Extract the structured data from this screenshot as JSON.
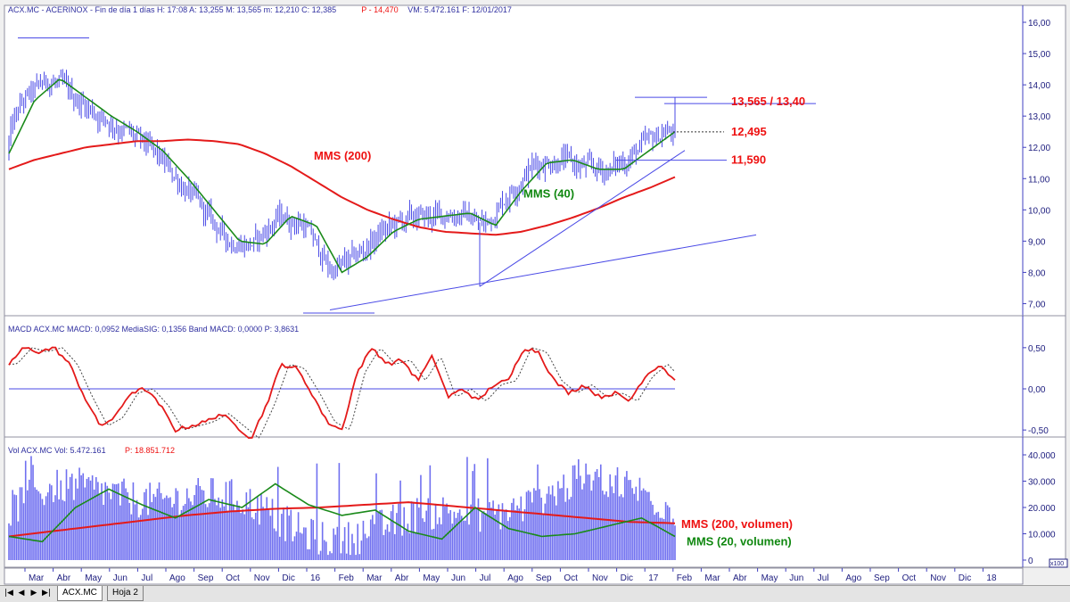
{
  "colors": {
    "price": "#4a4ae6",
    "mms200": "#e41a1a",
    "mms40": "#1a8a1a",
    "macd": "#e41a1a",
    "signal": "#444444",
    "volume": "#7070f0",
    "axis": "#4040c0",
    "annot_red": "#ee1111",
    "annot_green": "#118811"
  },
  "price_panel": {
    "header": "ACX.MC - ACERINOX - Fin de día 1 días H: 17:08 A: 13,255 M: 13,565 m: 12,210 C: 12,385",
    "header_p": "P - 14,470",
    "header_tail": "VM: 5.472.161 F: 12/01/2017",
    "y_ticks": [
      "16,00",
      "15,00",
      "14,00",
      "13,00",
      "12,00",
      "11,00",
      "10,00",
      "9,00",
      "8,00",
      "7,00"
    ],
    "labels": {
      "mms200": "MMS (200)",
      "mms40": "MMS (40)",
      "lvl1": "13,565 / 13,40",
      "lvl2": "12,495",
      "lvl3": "11,590"
    }
  },
  "macd_panel": {
    "header": "MACD ACX.MC MACD: 0,0952 MediaSIG: 0,1356 Band MACD: 0,0000 P: 3,8631",
    "y_ticks": [
      "0,50",
      "0,00",
      "-0,50"
    ]
  },
  "volume_panel": {
    "header": "Vol ACX.MC Vol: 5.472.161",
    "header_p": "P: 18.851.712",
    "y_ticks": [
      "40.000",
      "30.000",
      "20.000",
      "10.000",
      "0"
    ],
    "y_unit": "x100",
    "labels": {
      "mms200": "MMS (200, volumen)",
      "mms20": "MMS (20, volumen)"
    }
  },
  "x_axis": {
    "months": [
      "Mar",
      "Abr",
      "May",
      "Jun",
      "Jul",
      "Ago",
      "Sep",
      "Oct",
      "Nov",
      "Dic",
      "16",
      "Feb",
      "Mar",
      "Abr",
      "May",
      "Jun",
      "Jul",
      "Ago",
      "Sep",
      "Oct",
      "Nov",
      "Dic",
      "17",
      "Feb",
      "Mar",
      "Abr",
      "May",
      "Jun",
      "Jul",
      "Ago",
      "Sep",
      "Oct",
      "Nov",
      "Dic",
      "18"
    ]
  },
  "tabs": {
    "sheet1": "ACX.MC",
    "sheet2": "Hoja 2"
  },
  "chart_data": {
    "type": "line",
    "title": "ACX.MC - ACERINOX",
    "ylim": [
      6.5,
      16.2
    ],
    "series": [
      {
        "name": "MMS (200)",
        "values": [
          11.3,
          11.6,
          11.8,
          12.0,
          12.1,
          12.2,
          12.2,
          12.25,
          12.2,
          12.1,
          11.8,
          11.4,
          10.9,
          10.4,
          10.0,
          9.7,
          9.45,
          9.3,
          9.25,
          9.2,
          9.3,
          9.5,
          9.75,
          10.05,
          10.4,
          10.7,
          11.05
        ]
      },
      {
        "name": "MMS (40)",
        "values": [
          11.8,
          13.5,
          14.2,
          13.6,
          13.0,
          12.5,
          11.9,
          11.0,
          10.0,
          9.0,
          8.9,
          9.8,
          9.5,
          8.0,
          8.5,
          9.3,
          9.7,
          9.8,
          9.9,
          9.5,
          10.6,
          11.5,
          11.6,
          11.3,
          11.3,
          11.9,
          12.5
        ]
      }
    ],
    "key_levels": [
      13.565,
      13.4,
      12.495,
      11.59
    ],
    "price_range": {
      "high": 15.5,
      "low": 6.8
    },
    "macd_ylim": [
      -0.65,
      0.65
    ],
    "volume_ylim": [
      0,
      40000
    ],
    "volume_unit": "x100"
  }
}
